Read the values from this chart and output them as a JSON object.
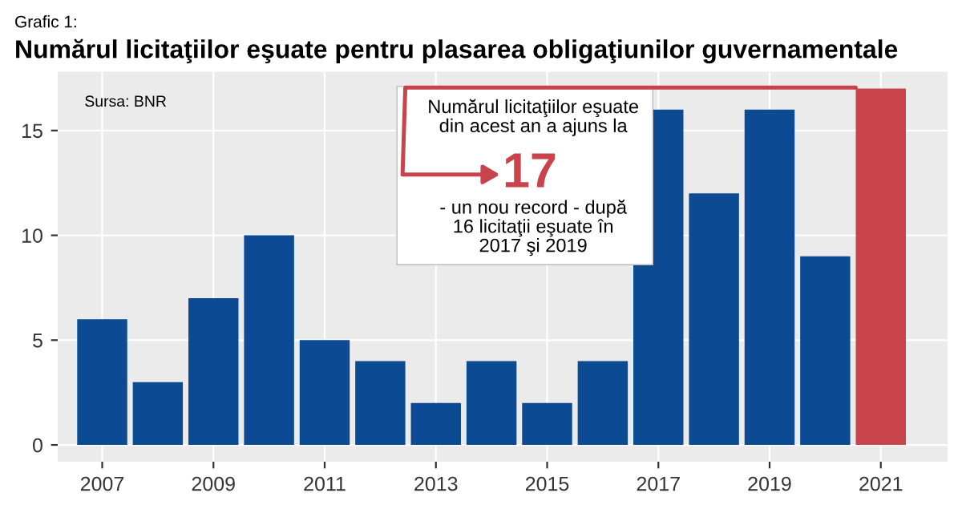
{
  "chart_data": {
    "type": "bar",
    "title": "Numărul licitaţiilor eşuate pentru plasarea obligaţiunilor guvernamentale",
    "x": [
      2007,
      2008,
      2009,
      2010,
      2011,
      2012,
      2013,
      2014,
      2015,
      2016,
      2017,
      2018,
      2019,
      2020,
      2021
    ],
    "values": [
      6,
      3,
      7,
      10,
      5,
      4,
      2,
      4,
      2,
      4,
      16,
      12,
      16,
      9,
      17
    ],
    "colors": [
      "#0d4a94",
      "#0d4a94",
      "#0d4a94",
      "#0d4a94",
      "#0d4a94",
      "#0d4a94",
      "#0d4a94",
      "#0d4a94",
      "#0d4a94",
      "#0d4a94",
      "#0d4a94",
      "#0d4a94",
      "#0d4a94",
      "#0d4a94",
      "#c8434b"
    ],
    "xlim": [
      2006.2,
      2022.2
    ],
    "xticks": [
      2007,
      2009,
      2011,
      2013,
      2015,
      2017,
      2019,
      2021
    ],
    "ylim": [
      -0.8,
      17.8
    ],
    "yticks": [
      0,
      5,
      10,
      15
    ],
    "grid": true,
    "annotations": [
      "Grafic 1:",
      "Sursa: BNR",
      "Numărul licitaţiilor eşuate\ndin acest an a ajuns la",
      "17",
      "- un nou record - după\n16 licitaţii eşuate în\n2017 şi 2019"
    ]
  }
}
